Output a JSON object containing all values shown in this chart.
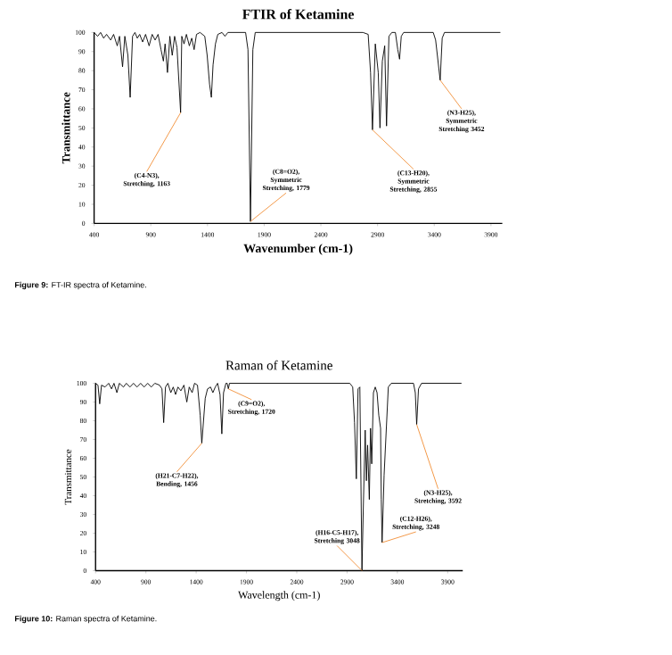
{
  "chart_data": [
    {
      "type": "line",
      "title": "FTIR of Ketamine",
      "xlabel": "Wavenumber (cm-1)",
      "ylabel": "Transmittance",
      "color": "#000000",
      "x": [
        400,
        431,
        457,
        484,
        510,
        546,
        572,
        604,
        624,
        651,
        671,
        698,
        718,
        739,
        760,
        781,
        802,
        828,
        854,
        885,
        912,
        938,
        964,
        990,
        1011,
        1026,
        1047,
        1068,
        1089,
        1110,
        1131,
        1163,
        1173,
        1193,
        1214,
        1240,
        1261,
        1282,
        1303,
        1334,
        1376,
        1397,
        1418,
        1434,
        1449,
        1470,
        1491,
        1528,
        1554,
        1580,
        1736,
        1757,
        1779,
        1800,
        1821,
        2771,
        2817,
        2838,
        2855,
        2880,
        2906,
        2921,
        2942,
        2963,
        2979,
        3000,
        3026,
        3057,
        3078,
        3094,
        3109,
        3130,
        3391,
        3412,
        3452,
        3470,
        3490,
        3980
      ],
      "values": [
        100,
        98,
        100,
        97,
        99,
        96,
        99,
        93,
        98,
        82,
        98,
        88,
        66,
        98,
        100,
        97,
        99,
        95,
        99,
        93,
        99,
        96,
        99,
        91,
        85,
        94,
        79,
        98,
        88,
        98,
        92,
        58,
        98,
        94,
        99,
        93,
        97,
        91,
        99,
        100,
        98,
        88,
        73,
        66,
        83,
        94,
        99,
        100,
        98,
        100,
        100,
        91,
        1,
        91,
        100,
        100,
        99,
        79,
        49,
        94,
        79,
        50,
        85,
        93,
        51,
        98,
        100,
        100,
        91,
        86,
        98,
        100,
        100,
        96,
        75,
        97,
        100,
        100
      ],
      "xlim": [
        400,
        4000
      ],
      "xticks": [
        400,
        900,
        1400,
        1900,
        2400,
        2900,
        3400,
        3900
      ],
      "ylim": [
        0,
        100
      ],
      "yticks": [
        0,
        10,
        20,
        30,
        40,
        50,
        60,
        70,
        80,
        90,
        100
      ],
      "annotations": [
        {
          "text": "(C4-N3), Stretching, 1163",
          "x": 1163,
          "y": 58
        },
        {
          "text": "(C8=O2), Symmetric Stretching, 1779",
          "x": 1779,
          "y": 1
        },
        {
          "text": "(C13-H20), Symmetric Stretching, 2855",
          "x": 2855,
          "y": 49
        },
        {
          "text": "(N3-H25), Symmetric Stretching 3452",
          "x": 3452,
          "y": 75
        },
        "**Figure 9:** FT-IR spectra of Ketamine."
      ]
    },
    {
      "type": "line",
      "title": "Raman of Ketamine",
      "xlabel": "Wavelength (cm-1)",
      "ylabel": "Transmittance",
      "color": "#000000",
      "x": [
        400,
        424,
        441,
        459,
        494,
        530,
        559,
        583,
        612,
        636,
        677,
        706,
        742,
        777,
        812,
        848,
        883,
        918,
        954,
        989,
        1036,
        1060,
        1077,
        1095,
        1119,
        1148,
        1172,
        1195,
        1219,
        1248,
        1278,
        1307,
        1331,
        1360,
        1384,
        1413,
        1440,
        1456,
        1490,
        1513,
        1543,
        1566,
        1590,
        1613,
        1637,
        1655,
        1672,
        1696,
        1708,
        1720,
        1731,
        2927,
        2956,
        2974,
        2992,
        3009,
        3027,
        3048,
        3062,
        3080,
        3092,
        3104,
        3121,
        3133,
        3145,
        3162,
        3180,
        3198,
        3215,
        3233,
        3240,
        3248,
        3268,
        3310,
        3339,
        3560,
        3578,
        3592,
        3610,
        3640,
        4034
      ],
      "values": [
        100,
        99,
        89,
        99,
        98,
        100,
        97,
        100,
        95,
        100,
        98,
        100,
        98,
        100,
        98,
        100,
        98,
        100,
        98,
        100,
        99,
        97,
        79,
        98,
        100,
        95,
        98,
        94,
        98,
        96,
        99,
        90,
        98,
        95,
        100,
        99,
        83,
        68,
        92,
        97,
        98,
        95,
        98,
        100,
        94,
        73,
        95,
        100,
        100,
        97,
        100,
        100,
        98,
        79,
        49,
        97,
        98,
        0,
        35,
        75,
        48,
        67,
        38,
        76,
        57,
        95,
        98,
        95,
        83,
        76,
        38,
        15,
        51,
        98,
        100,
        100,
        95,
        78,
        97,
        100,
        100
      ],
      "xlim": [
        400,
        4050
      ],
      "xticks": [
        400,
        900,
        1400,
        1900,
        2400,
        2900,
        3400,
        3900
      ],
      "ylim": [
        0,
        100
      ],
      "yticks": [
        0,
        10,
        20,
        30,
        40,
        50,
        60,
        70,
        80,
        90,
        100
      ],
      "annotations": [
        {
          "text": "(H21-C7-H22), Bending, 1456",
          "x": 1456,
          "y": 68
        },
        {
          "text": "(C9=O2), Stretching, 1720",
          "x": 1720,
          "y": 97
        },
        {
          "text": "(H16-C5-H17), Stretching 3048",
          "x": 3048,
          "y": 0
        },
        {
          "text": "(C12-H26), Stretching, 3248",
          "x": 3248,
          "y": 15
        },
        {
          "text": "(N3-H25), Stretching, 3592",
          "x": 3592,
          "y": 78
        },
        "**Figure 10:** Raman spectra of Ketamine."
      ]
    }
  ]
}
